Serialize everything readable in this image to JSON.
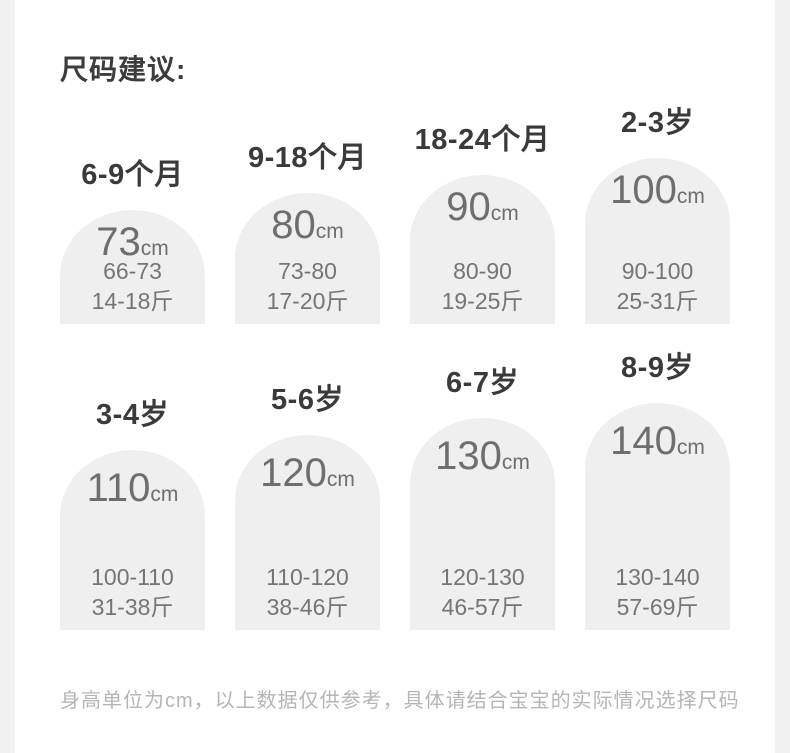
{
  "title": "尺码建议:",
  "footer": "身高单位为cm，以上数据仅供参考，具体请结合宝宝的实际情况选择尺码",
  "sizes": [
    {
      "age": "6-9个月",
      "height": "73",
      "unit": "cm",
      "height_range": "66-73",
      "weight_range": "14-18斤"
    },
    {
      "age": "9-18个月",
      "height": "80",
      "unit": "cm",
      "height_range": "73-80",
      "weight_range": "17-20斤"
    },
    {
      "age": "18-24个月",
      "height": "90",
      "unit": "cm",
      "height_range": "80-90",
      "weight_range": "19-25斤"
    },
    {
      "age": "2-3岁",
      "height": "100",
      "unit": "cm",
      "height_range": "90-100",
      "weight_range": "25-31斤"
    },
    {
      "age": "3-4岁",
      "height": "110",
      "unit": "cm",
      "height_range": "100-110",
      "weight_range": "31-38斤"
    },
    {
      "age": "5-6岁",
      "height": "120",
      "unit": "cm",
      "height_range": "110-120",
      "weight_range": "38-46斤"
    },
    {
      "age": "6-7岁",
      "height": "130",
      "unit": "cm",
      "height_range": "120-130",
      "weight_range": "46-57斤"
    },
    {
      "age": "8-9岁",
      "height": "140",
      "unit": "cm",
      "height_range": "130-140",
      "weight_range": "57-69斤"
    }
  ],
  "colors": {
    "card_bg": "#ffffff",
    "page_side_strip": "#f1f1f1",
    "arch_bg": "#efefef",
    "title_text": "#3c3c3c",
    "age_text": "#3a3a3a",
    "value_text": "#6e6e6e",
    "range_text": "#757575",
    "footer_text": "#b5b5b5"
  },
  "chart_data": {
    "type": "bar",
    "title": "尺码建议:",
    "categories": [
      "6-9个月",
      "9-18个月",
      "18-24个月",
      "2-3岁",
      "3-4岁",
      "5-6岁",
      "6-7岁",
      "8-9岁"
    ],
    "series": [
      {
        "name": "height_cm",
        "values": [
          73,
          80,
          90,
          100,
          110,
          120,
          130,
          140
        ]
      },
      {
        "name": "height_range_cm",
        "values": [
          "66-73",
          "73-80",
          "80-90",
          "90-100",
          "100-110",
          "110-120",
          "120-130",
          "130-140"
        ]
      },
      {
        "name": "weight_range_jin",
        "values": [
          "14-18",
          "17-20",
          "19-25",
          "25-31",
          "31-38",
          "38-46",
          "46-57",
          "57-69"
        ]
      }
    ],
    "xlabel": "",
    "ylabel": "",
    "legend": "none",
    "grid": false,
    "layout_hint": "two rows of 4 arch-shaped bars, heights increase left-to-right within each row",
    "annotation": "身高单位为cm，以上数据仅供参考，具体请结合宝宝的实际情况选择尺码"
  }
}
